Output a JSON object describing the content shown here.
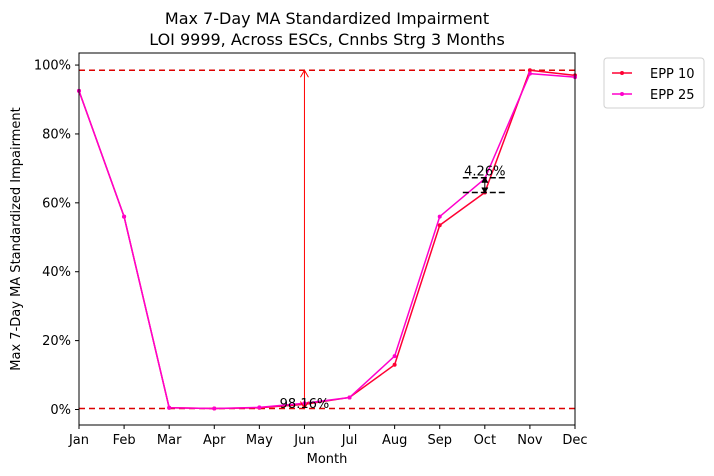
{
  "chart_data": {
    "type": "line",
    "title_line1": "Max 7-Day MA Standardized Impairment",
    "title_line2": "LOI 9999, Across ESCs, Cnnbs Strg 3 Months",
    "xlabel": "Month",
    "ylabel": "Max 7-Day MA Standardized Impairment",
    "categories": [
      "Jan",
      "Feb",
      "Mar",
      "Apr",
      "May",
      "Jun",
      "Jul",
      "Aug",
      "Sep",
      "Oct",
      "Nov",
      "Dec"
    ],
    "yticks": [
      0,
      20,
      40,
      60,
      80,
      100
    ],
    "ytick_labels": [
      "0%",
      "20%",
      "40%",
      "60%",
      "80%",
      "100%"
    ],
    "ylim": [
      -4.5,
      103.5
    ],
    "grid": false,
    "legend_placement": "outside-top-right",
    "series": [
      {
        "name": "EPP 10",
        "color": "#ff0033",
        "values": [
          92.5,
          56,
          0.5,
          0.3,
          0.5,
          1.5,
          3.5,
          13,
          53.5,
          63,
          98.5,
          97
        ]
      },
      {
        "name": "EPP 25",
        "color": "#ff00cc",
        "values": [
          92.5,
          56,
          0.5,
          0.3,
          0.6,
          1.8,
          3.5,
          15.5,
          56,
          67,
          97.5,
          96.5
        ]
      }
    ],
    "reference_lines": {
      "color": "#dd0000",
      "top_value": 98.5,
      "bottom_value": 0.3
    },
    "annotations": [
      {
        "text": "98.16%",
        "x": "Jun",
        "color": "#ff0000",
        "from": 0.3,
        "to": 98.5
      },
      {
        "text": "4.26%",
        "x": "Oct",
        "color": "#000000",
        "from": 63,
        "to": 67.3
      }
    ]
  }
}
